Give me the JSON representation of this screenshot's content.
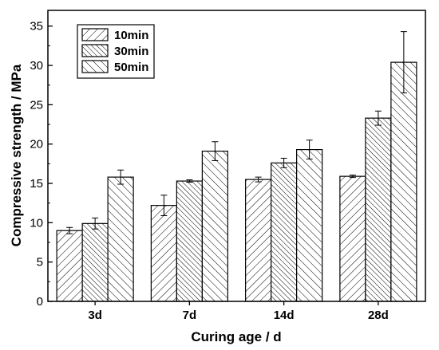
{
  "chart_data": {
    "type": "bar",
    "categories": [
      "3d",
      "7d",
      "14d",
      "28d"
    ],
    "series": [
      {
        "name": "10min",
        "values": [
          9.0,
          12.2,
          15.5,
          15.9
        ],
        "errors": [
          0.4,
          1.3,
          0.3,
          0.15
        ],
        "pattern": "diag-right"
      },
      {
        "name": "30min",
        "values": [
          9.9,
          15.3,
          17.6,
          23.3
        ],
        "errors": [
          0.7,
          0.15,
          0.6,
          0.9
        ],
        "pattern": "diag-left-dense"
      },
      {
        "name": "50min",
        "values": [
          15.8,
          19.1,
          19.3,
          30.4
        ],
        "errors": [
          0.9,
          1.2,
          1.2,
          3.9
        ],
        "pattern": "diag-left"
      }
    ],
    "xlabel": "Curing age / d",
    "ylabel": "Compressive strength / MPa",
    "ylim": [
      0,
      37
    ],
    "yticks": [
      0,
      5,
      10,
      15,
      20,
      25,
      30,
      35
    ],
    "legend_position": "top-left",
    "grid": false
  }
}
